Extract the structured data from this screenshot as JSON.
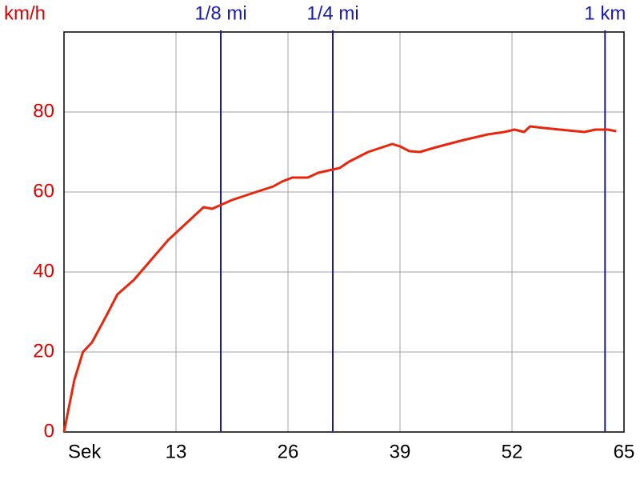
{
  "chart_data": {
    "type": "line",
    "y_label": "km/h",
    "x": [
      0,
      1.2,
      2.2,
      3.25,
      4.9,
      6.2,
      8.1,
      12.1,
      14.9,
      16.2,
      17.2,
      19.5,
      22.3,
      24.3,
      25.3,
      26.5,
      28.3,
      29.5,
      32,
      33.1,
      35.3,
      38.1,
      39,
      40.1,
      41.3,
      43.2,
      46.4,
      49.2,
      51.1,
      52.3,
      53.4,
      54.1,
      55.7,
      58.5,
      60.4,
      61.7,
      63.1,
      64.1
    ],
    "values": [
      0,
      13,
      20,
      22.4,
      29,
      34.4,
      38,
      48,
      53.6,
      56.2,
      55.8,
      58,
      60,
      61.4,
      62.6,
      63.6,
      63.6,
      64.8,
      66,
      67.6,
      70,
      72,
      71.4,
      70.2,
      70,
      71.2,
      73,
      74.4,
      75,
      75.6,
      75,
      76.4,
      76,
      75.4,
      75,
      75.6,
      75.6,
      75.2
    ],
    "color": "#e8260c",
    "xlim": [
      0,
      65
    ],
    "xticks": [
      {
        "value": 0,
        "label": "Sek"
      },
      13,
      26,
      39,
      52,
      65
    ],
    "ylim": [
      0,
      100
    ],
    "yticks": [
      0,
      20,
      40,
      60,
      80
    ],
    "grid": true,
    "annotations": [
      {
        "label": "1/8 mi",
        "x": 18.2
      },
      {
        "label": "1/4 mi",
        "x": 31.2
      },
      {
        "label": "1 km",
        "x": 62.8
      }
    ]
  }
}
